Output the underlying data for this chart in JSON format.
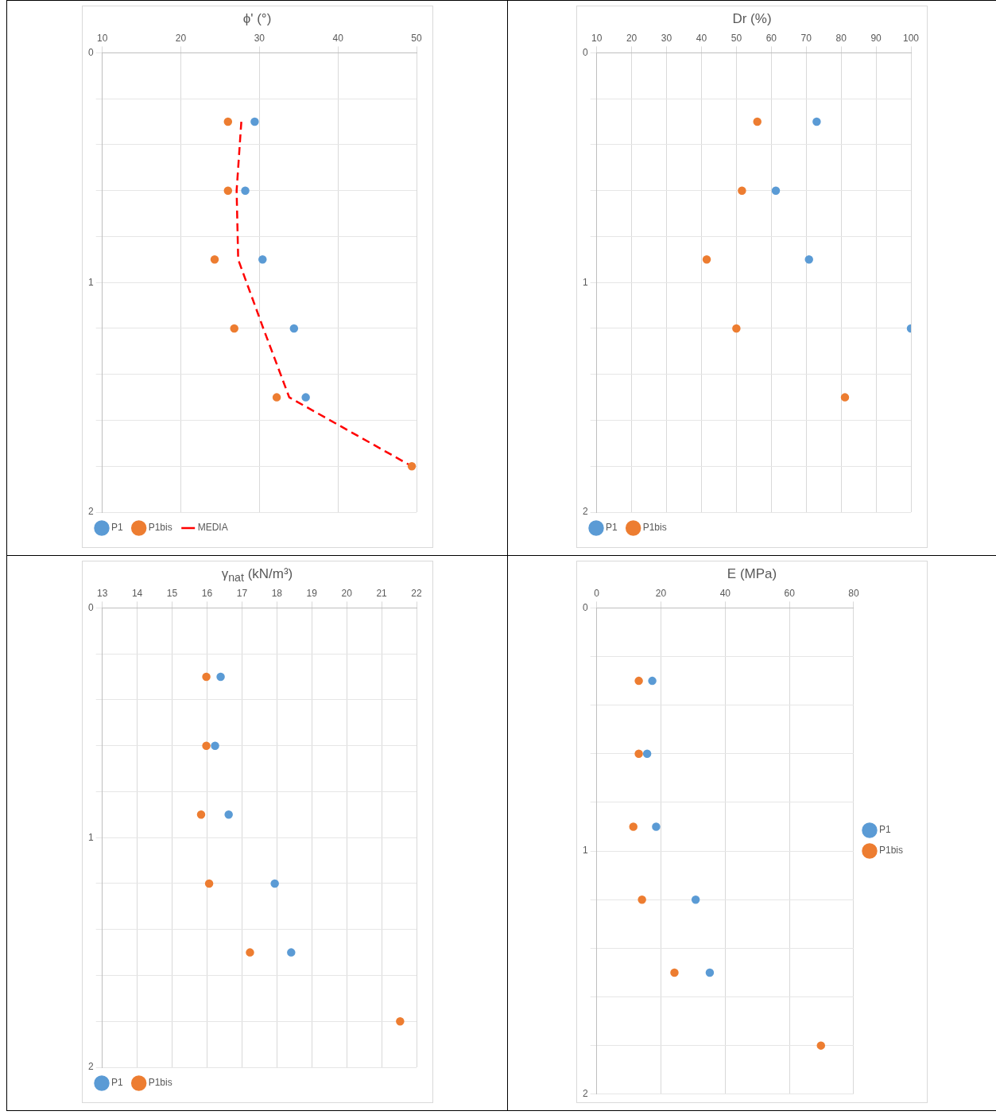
{
  "chart_data": [
    {
      "type": "scatter",
      "title": "ϕ' (°)",
      "xlim": [
        10,
        50
      ],
      "xticks": [
        10,
        20,
        30,
        40,
        50
      ],
      "ylim": [
        2,
        0
      ],
      "yticks": [
        0,
        {
          "value": 0.2,
          "label": null
        },
        {
          "value": 0.4,
          "label": null
        },
        {
          "value": 0.6,
          "label": null
        },
        {
          "value": 0.8,
          "label": null
        },
        1,
        {
          "value": 1.2,
          "label": null
        },
        {
          "value": 1.4,
          "label": null
        },
        {
          "value": 1.6,
          "label": null
        },
        {
          "value": 1.8,
          "label": null
        },
        2
      ],
      "grid": true,
      "legend": "bottom left",
      "marker": "circle",
      "series": [
        {
          "name": "P1",
          "color": "#5b9bd5",
          "x": [
            29.4,
            28.2,
            30.4,
            34.4,
            35.9
          ],
          "values": [
            0.3,
            0.6,
            0.9,
            1.2,
            1.5
          ]
        },
        {
          "name": "P1bis",
          "color": "#ed7d31",
          "x": [
            26.0,
            26.0,
            24.3,
            26.8,
            32.2,
            49.4
          ],
          "values": [
            0.3,
            0.6,
            0.9,
            1.2,
            1.5,
            1.8
          ]
        },
        {
          "name": "MEDIA",
          "type": "line",
          "color": "#ff0000",
          "marker": "none",
          "line_style": "dashed",
          "x": [
            27.7,
            27.1,
            27.3,
            30.5,
            33.8,
            49.4
          ],
          "values": [
            0.3,
            0.6,
            0.9,
            1.2,
            1.5,
            1.8
          ]
        }
      ]
    },
    {
      "type": "scatter",
      "title": "Dr (%)",
      "xlim": [
        10,
        100
      ],
      "xticks": [
        10,
        20,
        30,
        40,
        50,
        60,
        70,
        80,
        90,
        100
      ],
      "ylim": [
        2,
        0
      ],
      "yticks": [
        0,
        {
          "value": 0.2,
          "label": null
        },
        {
          "value": 0.4,
          "label": null
        },
        {
          "value": 0.6,
          "label": null
        },
        {
          "value": 0.8,
          "label": null
        },
        1,
        {
          "value": 1.2,
          "label": null
        },
        {
          "value": 1.4,
          "label": null
        },
        {
          "value": 1.6,
          "label": null
        },
        {
          "value": 1.8,
          "label": null
        },
        2
      ],
      "grid": true,
      "legend": "bottom left",
      "marker": "circle",
      "series": [
        {
          "name": "P1",
          "color": "#5b9bd5",
          "x": [
            73.0,
            61.3,
            70.8,
            100
          ],
          "values": [
            0.3,
            0.6,
            0.9,
            1.2
          ]
        },
        {
          "name": "P1bis",
          "color": "#ed7d31",
          "x": [
            56.0,
            51.6,
            41.5,
            50.0,
            81.1
          ],
          "values": [
            0.3,
            0.6,
            0.9,
            1.2,
            1.5
          ]
        }
      ]
    },
    {
      "type": "scatter",
      "title": "γ$_{nat}$ (kN/m³)",
      "xlim": [
        13,
        22
      ],
      "xticks": [
        13,
        14,
        15,
        16,
        17,
        18,
        19,
        20,
        21,
        22
      ],
      "ylim": [
        2,
        0
      ],
      "yticks": [
        0,
        {
          "value": 0.2,
          "label": null
        },
        {
          "value": 0.4,
          "label": null
        },
        {
          "value": 0.6,
          "label": null
        },
        {
          "value": 0.8,
          "label": null
        },
        1,
        {
          "value": 1.2,
          "label": null
        },
        {
          "value": 1.4,
          "label": null
        },
        {
          "value": 1.6,
          "label": null
        },
        {
          "value": 1.8,
          "label": null
        },
        2
      ],
      "grid": true,
      "legend": "bottom left",
      "marker": "circle",
      "series": [
        {
          "name": "P1",
          "color": "#5b9bd5",
          "x": [
            16.39,
            16.23,
            16.62,
            17.94,
            18.41
          ],
          "values": [
            0.3,
            0.6,
            0.9,
            1.2,
            1.5
          ]
        },
        {
          "name": "P1bis",
          "color": "#ed7d31",
          "x": [
            15.98,
            15.98,
            15.83,
            16.06,
            17.23,
            21.53
          ],
          "values": [
            0.3,
            0.6,
            0.9,
            1.2,
            1.5,
            1.8
          ]
        }
      ]
    },
    {
      "type": "scatter",
      "title": "E (MPa)",
      "xlim": [
        0,
        80
      ],
      "xticks": [
        0,
        20,
        40,
        60,
        80
      ],
      "ylim": [
        2,
        0
      ],
      "yticks": [
        0,
        {
          "value": 0.2,
          "label": null
        },
        {
          "value": 0.4,
          "label": null
        },
        {
          "value": 0.6,
          "label": null
        },
        {
          "value": 0.8,
          "label": null
        },
        1,
        {
          "value": 1.2,
          "label": null
        },
        {
          "value": 1.4,
          "label": null
        },
        {
          "value": 1.6,
          "label": null
        },
        {
          "value": 1.8,
          "label": null
        },
        2
      ],
      "grid": true,
      "legend": "right",
      "marker": "circle",
      "series": [
        {
          "name": "P1",
          "color": "#5b9bd5",
          "x": [
            17.3,
            15.7,
            18.5,
            30.8,
            35.2
          ],
          "values": [
            0.3,
            0.6,
            0.9,
            1.2,
            1.5
          ]
        },
        {
          "name": "P1bis",
          "color": "#ed7d31",
          "x": [
            13.1,
            13.1,
            11.4,
            14.1,
            24.2,
            69.8
          ],
          "values": [
            0.3,
            0.6,
            0.9,
            1.2,
            1.5,
            1.8
          ]
        }
      ]
    }
  ]
}
